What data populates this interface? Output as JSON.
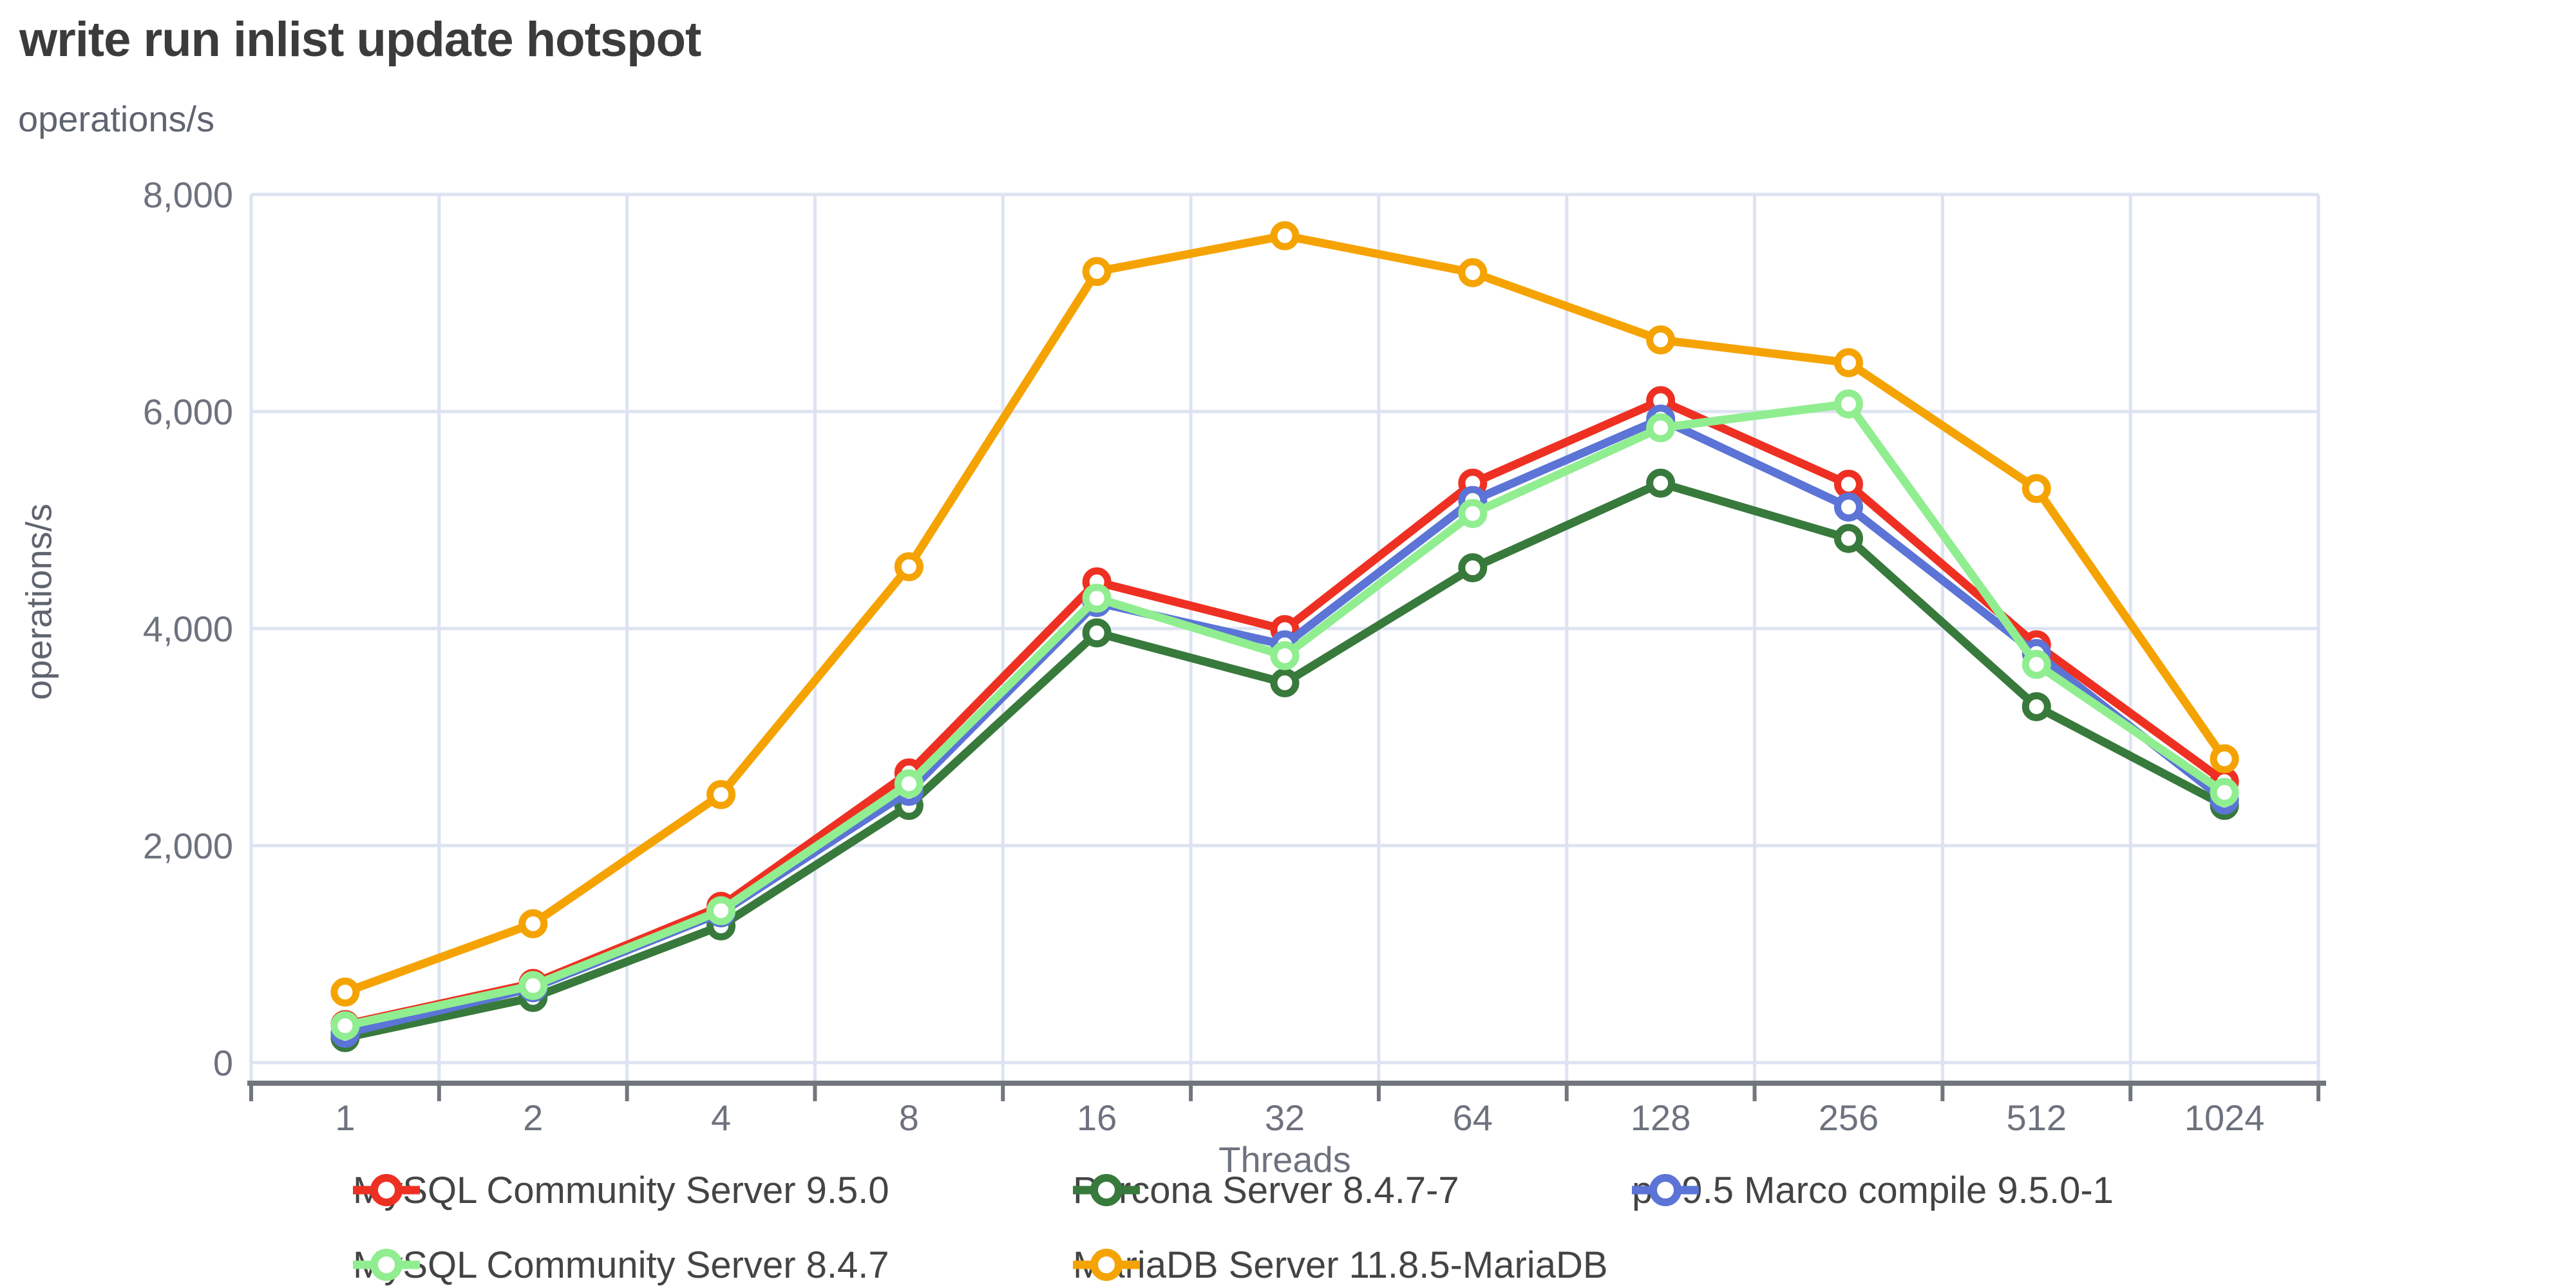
{
  "title": "write run inlist update hotspot",
  "y_axis_top_label": "operations/s",
  "y_axis_side_label": "operations/s",
  "x_axis_label": "Threads",
  "style": {
    "gridline_color": "#dde3f1",
    "axis_line_color": "#71767e",
    "tick_label_color": "#6d727e",
    "title_color": "#3b3b3b",
    "legend_text_color": "#444444"
  },
  "chart_data": {
    "type": "line",
    "title": "write run inlist update hotspot",
    "xlabel": "Threads",
    "ylabel": "operations/s",
    "categories": [
      "1",
      "2",
      "4",
      "8",
      "16",
      "32",
      "64",
      "128",
      "256",
      "512",
      "1024"
    ],
    "ylim": [
      0,
      8000
    ],
    "yticks": [
      0,
      2000,
      4000,
      6000,
      8000
    ],
    "ytick_labels": [
      "0",
      "2,000",
      "4,000",
      "6,000",
      "8,000"
    ],
    "grid": true,
    "legend_position": "bottom",
    "marker": "open-circle",
    "series": [
      {
        "name": "MySQL Community Server 9.5.0",
        "color": "#ee3023",
        "values": [
          350,
          730,
          1440,
          2670,
          4430,
          3990,
          5340,
          6100,
          5330,
          3850,
          2590
        ]
      },
      {
        "name": "Percona Server 8.4.7-7",
        "color": "#38793c",
        "values": [
          230,
          600,
          1260,
          2370,
          3960,
          3500,
          4560,
          5340,
          4830,
          3280,
          2370
        ]
      },
      {
        "name": "ps 9.5 Marco compile 9.5.0-1",
        "color": "#5b74d6",
        "values": [
          270,
          690,
          1380,
          2500,
          4240,
          3850,
          5180,
          5930,
          5120,
          3770,
          2420
        ]
      },
      {
        "name": "MySQL Community Server 8.4.7",
        "color": "#90ee90",
        "values": [
          340,
          710,
          1400,
          2570,
          4280,
          3750,
          5060,
          5850,
          6070,
          3670,
          2490
        ]
      },
      {
        "name": "MariaDB Server 11.8.5-MariaDB",
        "color": "#f5a302",
        "values": [
          650,
          1280,
          2470,
          4570,
          7290,
          7620,
          7280,
          6660,
          6450,
          5290,
          2800
        ]
      }
    ],
    "legend_rows": [
      [
        0,
        1,
        2
      ],
      [
        3,
        4
      ]
    ]
  }
}
